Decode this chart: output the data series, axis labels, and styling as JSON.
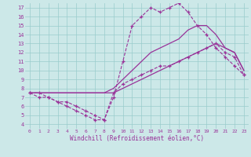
{
  "xlabel": "Windchill (Refroidissement éolien,°C)",
  "bg_color": "#cce8e8",
  "line_color": "#993399",
  "grid_color": "#99cccc",
  "xlim": [
    -0.5,
    23.5
  ],
  "ylim": [
    3.5,
    17.5
  ],
  "xticks": [
    0,
    1,
    2,
    3,
    4,
    5,
    6,
    7,
    8,
    9,
    10,
    11,
    12,
    13,
    14,
    15,
    16,
    17,
    18,
    19,
    20,
    21,
    22,
    23
  ],
  "yticks": [
    4,
    5,
    6,
    7,
    8,
    9,
    10,
    11,
    12,
    13,
    14,
    15,
    16,
    17
  ],
  "line_peak": {
    "x": [
      0,
      1,
      2,
      3,
      4,
      5,
      6,
      7,
      8,
      9,
      10,
      11,
      12,
      13,
      14,
      15,
      16,
      17,
      18,
      19,
      20,
      21,
      22,
      23
    ],
    "y": [
      7.5,
      7.5,
      7.0,
      6.5,
      6.5,
      6.0,
      5.5,
      5.0,
      4.5,
      7.0,
      11.0,
      15.0,
      16.0,
      17.0,
      16.5,
      17.0,
      17.5,
      16.5,
      15.0,
      14.0,
      12.5,
      11.5,
      10.5,
      9.5
    ],
    "marker": true
  },
  "line_high": {
    "x": [
      0,
      1,
      2,
      3,
      4,
      5,
      6,
      7,
      8,
      9,
      10,
      11,
      12,
      13,
      14,
      15,
      16,
      17,
      18,
      19,
      20,
      21,
      22,
      23
    ],
    "y": [
      7.5,
      7.5,
      7.5,
      7.5,
      7.5,
      7.5,
      7.5,
      7.5,
      7.5,
      8.0,
      9.0,
      10.0,
      11.0,
      12.0,
      12.5,
      13.0,
      13.5,
      14.5,
      15.0,
      15.0,
      14.0,
      12.5,
      12.0,
      10.0
    ],
    "marker": false
  },
  "line_mid": {
    "x": [
      0,
      1,
      2,
      3,
      4,
      5,
      6,
      7,
      8,
      9,
      10,
      11,
      12,
      13,
      14,
      15,
      16,
      17,
      18,
      19,
      20,
      21,
      22,
      23
    ],
    "y": [
      7.5,
      7.5,
      7.5,
      7.5,
      7.5,
      7.5,
      7.5,
      7.5,
      7.5,
      7.5,
      8.0,
      8.5,
      9.0,
      9.5,
      10.0,
      10.5,
      11.0,
      11.5,
      12.0,
      12.5,
      13.0,
      12.5,
      12.0,
      10.0
    ],
    "marker": false
  },
  "line_low": {
    "x": [
      0,
      1,
      2,
      3,
      4,
      5,
      6,
      7,
      8,
      9,
      10,
      11,
      12,
      13,
      14,
      15,
      16,
      17,
      18,
      19,
      20,
      21,
      22,
      23
    ],
    "y": [
      7.5,
      7.0,
      7.0,
      6.5,
      6.0,
      5.5,
      5.0,
      4.5,
      4.5,
      7.5,
      8.5,
      9.0,
      9.5,
      10.0,
      10.5,
      10.5,
      11.0,
      11.5,
      12.0,
      12.5,
      13.0,
      12.0,
      11.5,
      9.5
    ],
    "marker": true
  }
}
